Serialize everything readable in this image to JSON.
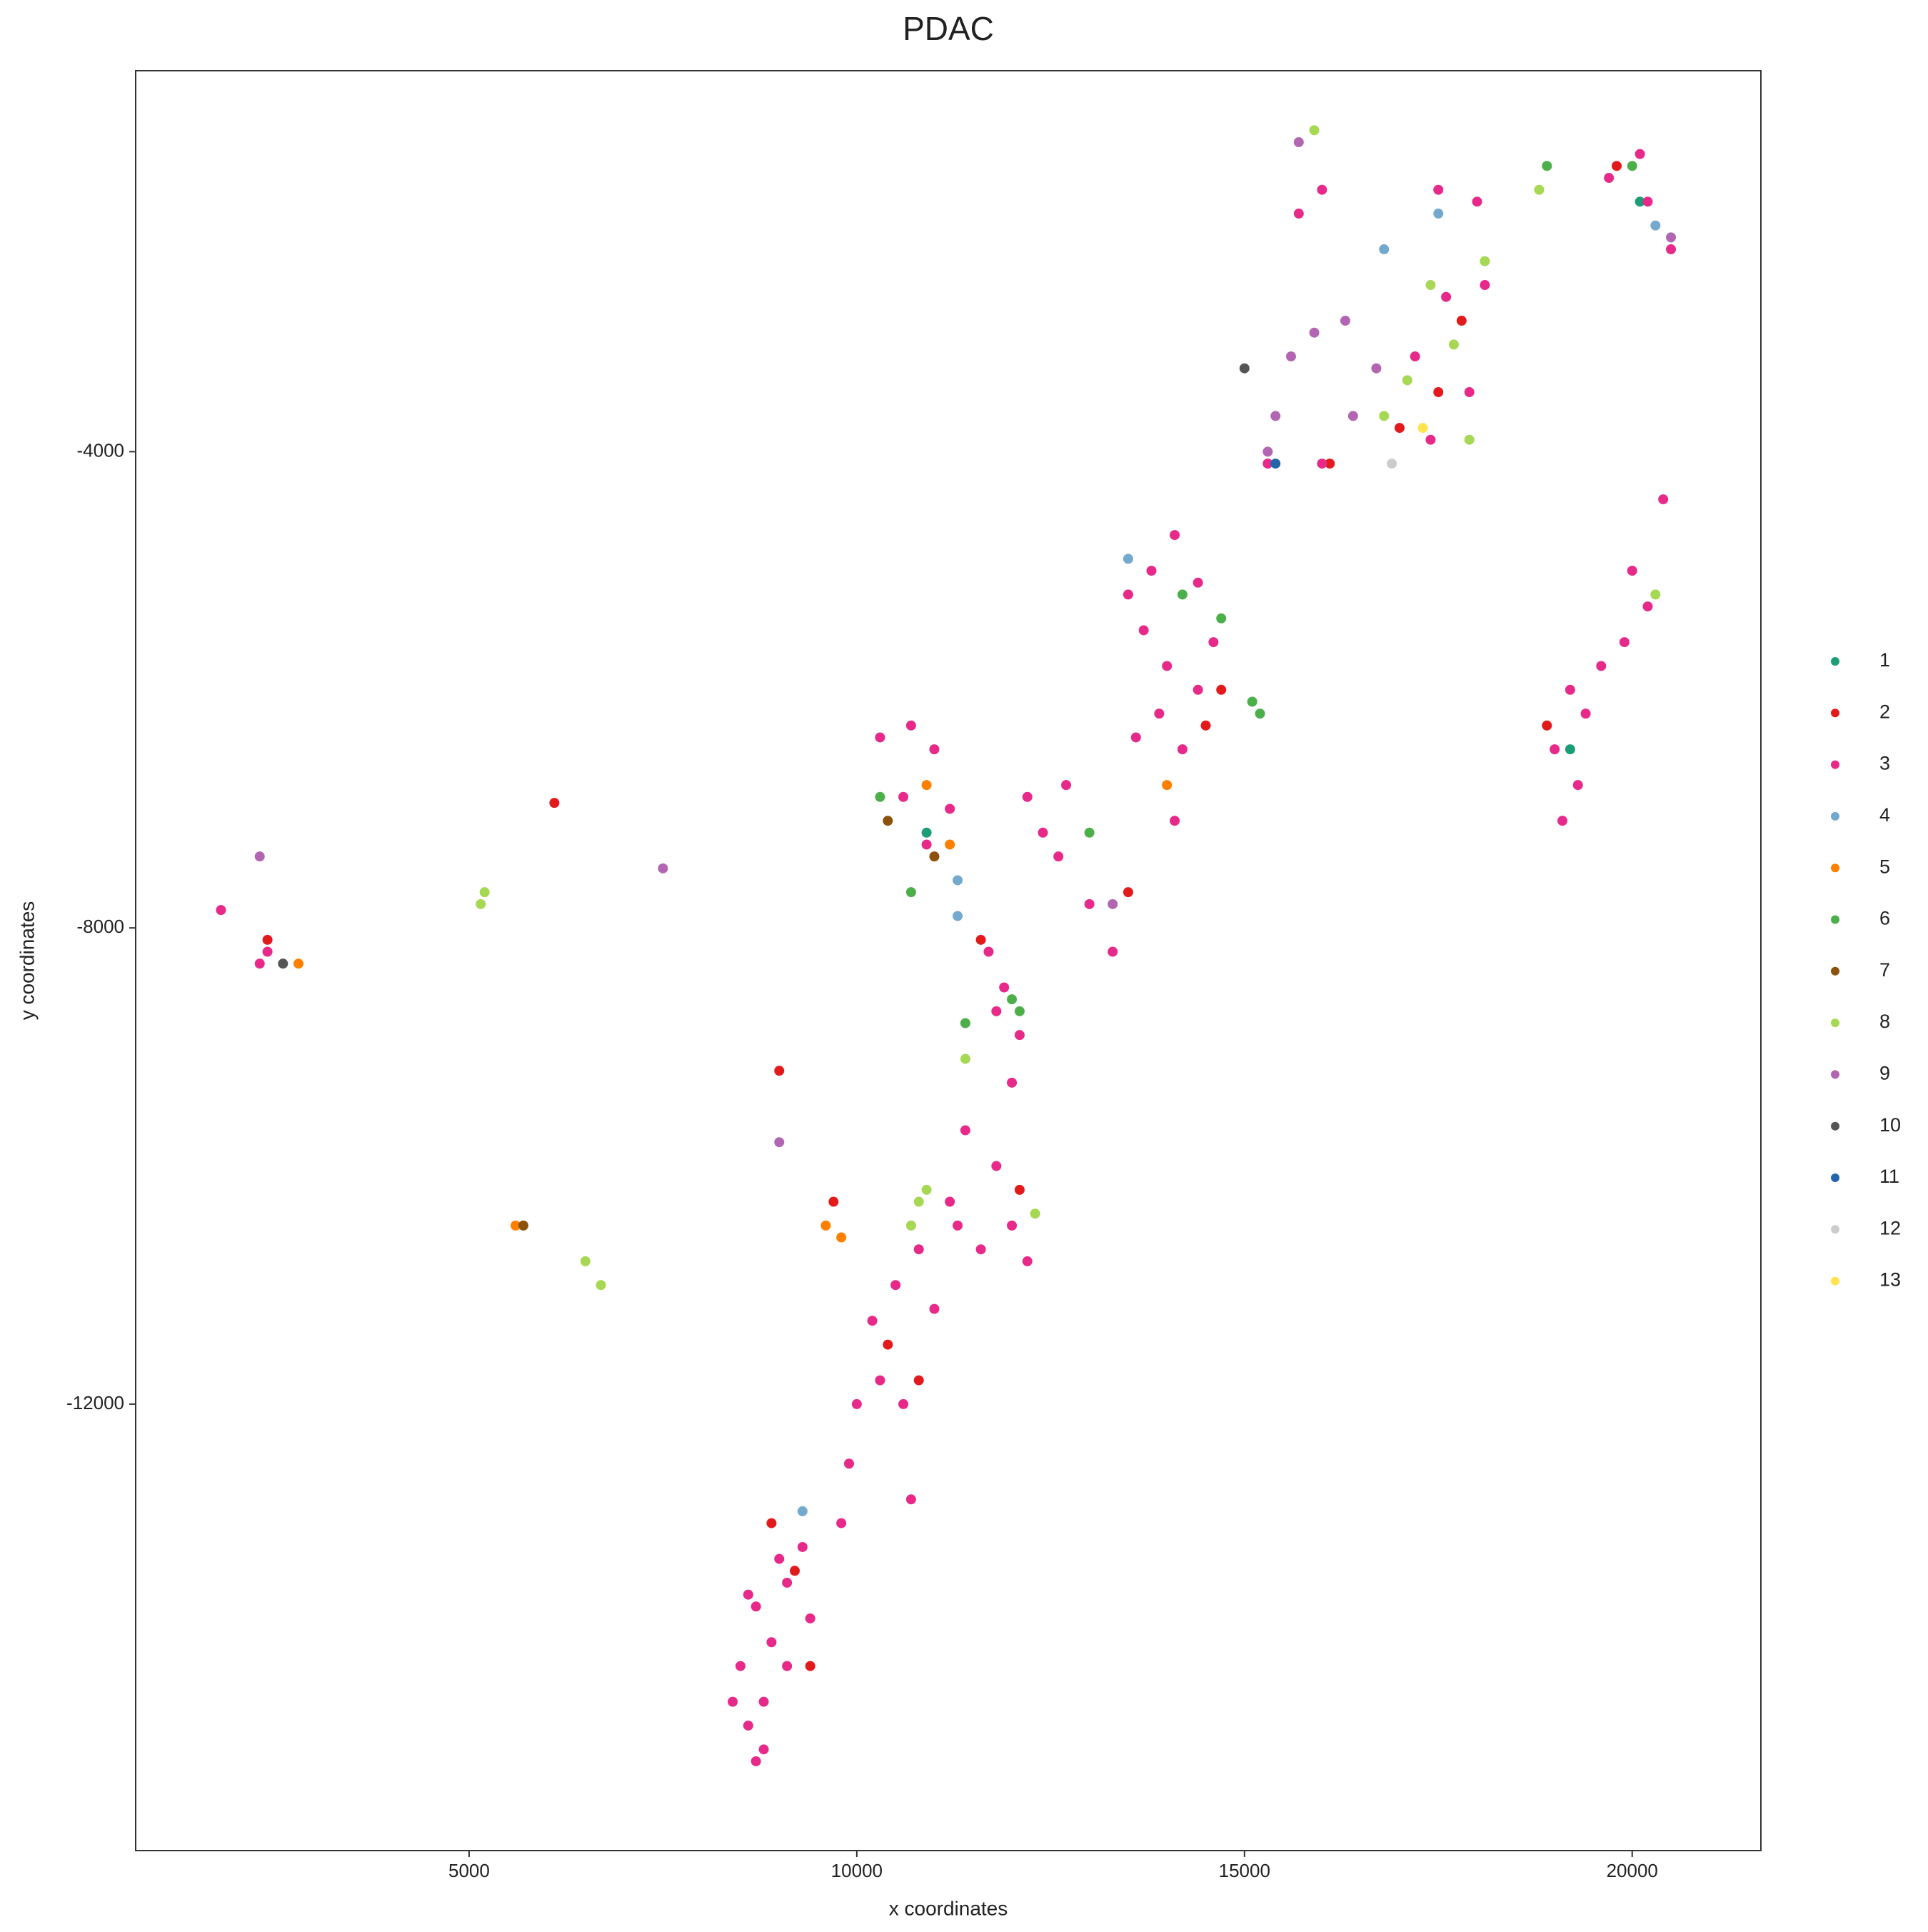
{
  "chart_data": {
    "type": "scatter",
    "title": "PDAC",
    "x_label": "x coordinates",
    "y_label": "y coordinates",
    "xlim": [
      700,
      21660
    ],
    "ylim": [
      -15750,
      -800
    ],
    "xticks": [
      5000,
      10000,
      15000,
      20000
    ],
    "yticks": [
      -12000,
      -8000,
      -4000
    ],
    "series": [
      {
        "name": "1",
        "color": "#1B9E77",
        "x": [
          10900,
          15300,
          20100,
          19200
        ],
        "y": [
          -7200,
          -4100,
          -1900,
          -6500
        ]
      },
      {
        "name": "2",
        "color": "#E31A1C",
        "x": [
          17500,
          17000,
          17800,
          14700,
          14500,
          9200,
          8900,
          9400,
          10400,
          10800,
          12100,
          6100,
          9000,
          18900,
          19800,
          16100,
          11600,
          9700,
          13500,
          2400
        ],
        "y": [
          -3500,
          -3800,
          -2900,
          -6000,
          -6300,
          -13400,
          -13000,
          -14200,
          -11500,
          -11800,
          -10200,
          -6950,
          -9200,
          -6300,
          -1600,
          -4100,
          -8100,
          -10300,
          -7700,
          -8100
        ]
      },
      {
        "name": "3",
        "color": "#E7298A",
        "x": [
          8700,
          8600,
          8800,
          8500,
          8900,
          8700,
          9100,
          9300,
          9000,
          8600,
          8800,
          9100,
          9400,
          8400,
          10200,
          10500,
          10800,
          10300,
          10600,
          11000,
          9900,
          10000,
          11300,
          9800,
          10700,
          11200,
          11600,
          12000,
          11800,
          12200,
          11400,
          11900,
          12100,
          11700,
          12000,
          11800,
          12400,
          12600,
          13000,
          12200,
          13300,
          12700,
          13800,
          14100,
          14400,
          13700,
          14000,
          14400,
          14200,
          13900,
          14600,
          13500,
          13600,
          14100,
          10300,
          10700,
          11000,
          10600,
          11200,
          10900,
          19200,
          19400,
          19000,
          19300,
          19100,
          19600,
          20000,
          20200,
          19900,
          20400,
          17200,
          17600,
          17900,
          17400,
          18100,
          19700,
          20200,
          20500,
          20100,
          17500,
          18000,
          16000,
          15700,
          16000,
          15300,
          2400,
          2300,
          1800
        ],
        "y": [
          -15000,
          -14700,
          -14500,
          -14200,
          -14000,
          -13700,
          -13500,
          -13200,
          -13300,
          -13600,
          -14900,
          -14200,
          -13800,
          -14500,
          -11300,
          -11000,
          -10700,
          -11800,
          -12000,
          -11200,
          -12500,
          -12000,
          -10500,
          -13000,
          -12800,
          -10300,
          -10700,
          -10500,
          -10000,
          -10800,
          -9700,
          -8500,
          -8900,
          -8200,
          -9300,
          -8700,
          -7200,
          -7400,
          -7800,
          -6900,
          -8200,
          -6800,
          -5000,
          -4700,
          -5100,
          -5500,
          -5800,
          -6000,
          -6500,
          -6200,
          -5600,
          -5200,
          -6400,
          -7100,
          -6400,
          -6300,
          -6500,
          -6900,
          -7000,
          -7300,
          -6000,
          -6200,
          -6500,
          -6800,
          -7100,
          -5800,
          -5000,
          -5300,
          -5600,
          -4400,
          -3200,
          -2700,
          -3500,
          -3900,
          -2600,
          -1700,
          -1900,
          -2300,
          -1500,
          -1800,
          -1900,
          -1800,
          -2000,
          -4100,
          -4100,
          -8200,
          -8300,
          -7850
        ]
      },
      {
        "name": "4",
        "color": "#74A9CF",
        "x": [
          13500,
          16800,
          17500,
          11300,
          11300,
          20300,
          9300
        ],
        "y": [
          -4900,
          -2300,
          -2000,
          -7600,
          -7900,
          -2100,
          -12900
        ]
      },
      {
        "name": "5",
        "color": "#FF7F00",
        "x": [
          9600,
          9800,
          11200,
          10900,
          2800,
          5600,
          14000
        ],
        "y": [
          -10500,
          -10600,
          -7300,
          -6800,
          -8300,
          -10500,
          -6800
        ]
      },
      {
        "name": "6",
        "color": "#4DAF4A",
        "x": [
          12000,
          12100,
          14200,
          14700,
          15100,
          15200,
          20000,
          10300,
          10700,
          11400,
          13000,
          18900
        ],
        "y": [
          -8600,
          -8700,
          -5200,
          -5400,
          -6100,
          -6200,
          -1600,
          -6900,
          -7700,
          -8800,
          -7200,
          -1600
        ]
      },
      {
        "name": "7",
        "color": "#8C510A",
        "x": [
          10400,
          11000,
          5700
        ],
        "y": [
          -7100,
          -7400,
          -10500
        ]
      },
      {
        "name": "8",
        "color": "#A6D854",
        "x": [
          17400,
          17700,
          17900,
          17100,
          18100,
          16800,
          10800,
          10700,
          10900,
          5200,
          5150,
          6500,
          6700,
          12300,
          11400,
          15900,
          18800,
          20300
        ],
        "y": [
          -2600,
          -3100,
          -3900,
          -3400,
          -2400,
          -3700,
          -10300,
          -10500,
          -10200,
          -7700,
          -7800,
          -10800,
          -11000,
          -10400,
          -9100,
          -1300,
          -1800,
          -5200
        ]
      },
      {
        "name": "9",
        "color": "#B266B2",
        "x": [
          15600,
          15900,
          16300,
          16700,
          15400,
          15300,
          16400,
          15700,
          20500,
          2300,
          7500,
          13300,
          9000
        ],
        "y": [
          -3200,
          -3000,
          -2900,
          -3300,
          -3700,
          -4000,
          -3700,
          -1400,
          -2200,
          -7400,
          -7500,
          -7800,
          -9800
        ]
      },
      {
        "name": "10",
        "color": "#555555",
        "x": [
          2600,
          15000
        ],
        "y": [
          -8300,
          -3300
        ]
      },
      {
        "name": "11",
        "color": "#2166AC",
        "x": [
          15400
        ],
        "y": [
          -4100
        ]
      },
      {
        "name": "12",
        "color": "#CCCCCC",
        "x": [
          16900
        ],
        "y": [
          -4100
        ]
      },
      {
        "name": "13",
        "color": "#FFE34F",
        "x": [
          17300
        ],
        "y": [
          -3800
        ]
      }
    ]
  }
}
